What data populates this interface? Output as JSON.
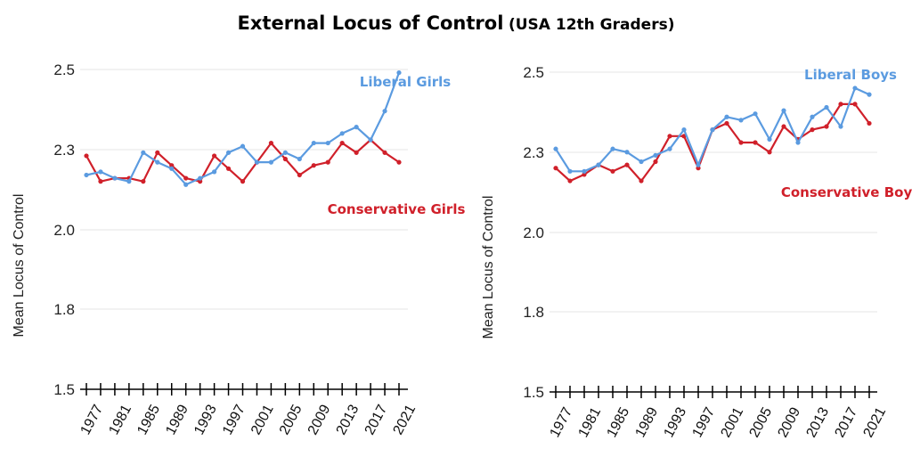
{
  "title": {
    "main": "External Locus of Control",
    "sub": "(USA 12th Graders)"
  },
  "colors": {
    "liberal": "#5b9be0",
    "conservative": "#d0202a",
    "grid": "#e6e6e6",
    "axis": "#000000"
  },
  "chart_data": [
    {
      "type": "line",
      "ylabel": "Mean Locus of Control",
      "ylim": [
        1.5,
        2.5
      ],
      "yticks": [
        "1.5",
        "1.8",
        "2.0",
        "2.3",
        "2.5"
      ],
      "x_tick_labels": [
        "1977",
        "1981",
        "1985",
        "1989",
        "1993",
        "1997",
        "2001",
        "2005",
        "2009",
        "2013",
        "2017",
        "2021"
      ],
      "x": [
        1977,
        1979,
        1981,
        1983,
        1985,
        1987,
        1989,
        1991,
        1993,
        1995,
        1997,
        1999,
        2001,
        2003,
        2005,
        2007,
        2009,
        2011,
        2013,
        2015,
        2017,
        2019,
        2021
      ],
      "series": [
        {
          "name": "Liberal Girls",
          "color_key": "liberal",
          "values": [
            2.17,
            2.18,
            2.16,
            2.15,
            2.24,
            2.21,
            2.19,
            2.14,
            2.16,
            2.18,
            2.24,
            2.26,
            2.21,
            2.21,
            2.24,
            2.22,
            2.27,
            2.27,
            2.3,
            2.32,
            2.28,
            2.37,
            2.49
          ]
        },
        {
          "name": "Conservative Girls",
          "color_key": "conservative",
          "values": [
            2.23,
            2.15,
            2.16,
            2.16,
            2.15,
            2.24,
            2.2,
            2.16,
            2.15,
            2.23,
            2.19,
            2.15,
            2.21,
            2.27,
            2.22,
            2.17,
            2.2,
            2.21,
            2.27,
            2.24,
            2.28,
            2.24,
            2.21
          ]
        }
      ]
    },
    {
      "type": "line",
      "ylabel": "Mean Locus of Control",
      "ylim": [
        1.5,
        2.5
      ],
      "yticks": [
        "1.5",
        "1.8",
        "2.0",
        "2.3",
        "2.5"
      ],
      "x_tick_labels": [
        "1977",
        "1981",
        "1985",
        "1989",
        "1993",
        "1997",
        "2001",
        "2005",
        "2009",
        "2013",
        "2017",
        "2021"
      ],
      "x": [
        1977,
        1979,
        1981,
        1983,
        1985,
        1987,
        1989,
        1991,
        1993,
        1995,
        1997,
        1999,
        2001,
        2003,
        2005,
        2007,
        2009,
        2011,
        2013,
        2015,
        2017,
        2019,
        2021
      ],
      "series": [
        {
          "name": "Liberal Boys",
          "color_key": "liberal",
          "values": [
            2.26,
            2.19,
            2.19,
            2.21,
            2.26,
            2.25,
            2.22,
            2.24,
            2.26,
            2.32,
            2.21,
            2.32,
            2.36,
            2.35,
            2.37,
            2.29,
            2.38,
            2.28,
            2.36,
            2.39,
            2.33,
            2.45,
            2.43
          ]
        },
        {
          "name": "Conservative Boys",
          "color_key": "conservative",
          "values": [
            2.2,
            2.16,
            2.18,
            2.21,
            2.19,
            2.21,
            2.16,
            2.22,
            2.3,
            2.3,
            2.2,
            2.32,
            2.34,
            2.28,
            2.28,
            2.25,
            2.33,
            2.29,
            2.32,
            2.33,
            2.4,
            2.4,
            2.34
          ]
        }
      ]
    }
  ]
}
